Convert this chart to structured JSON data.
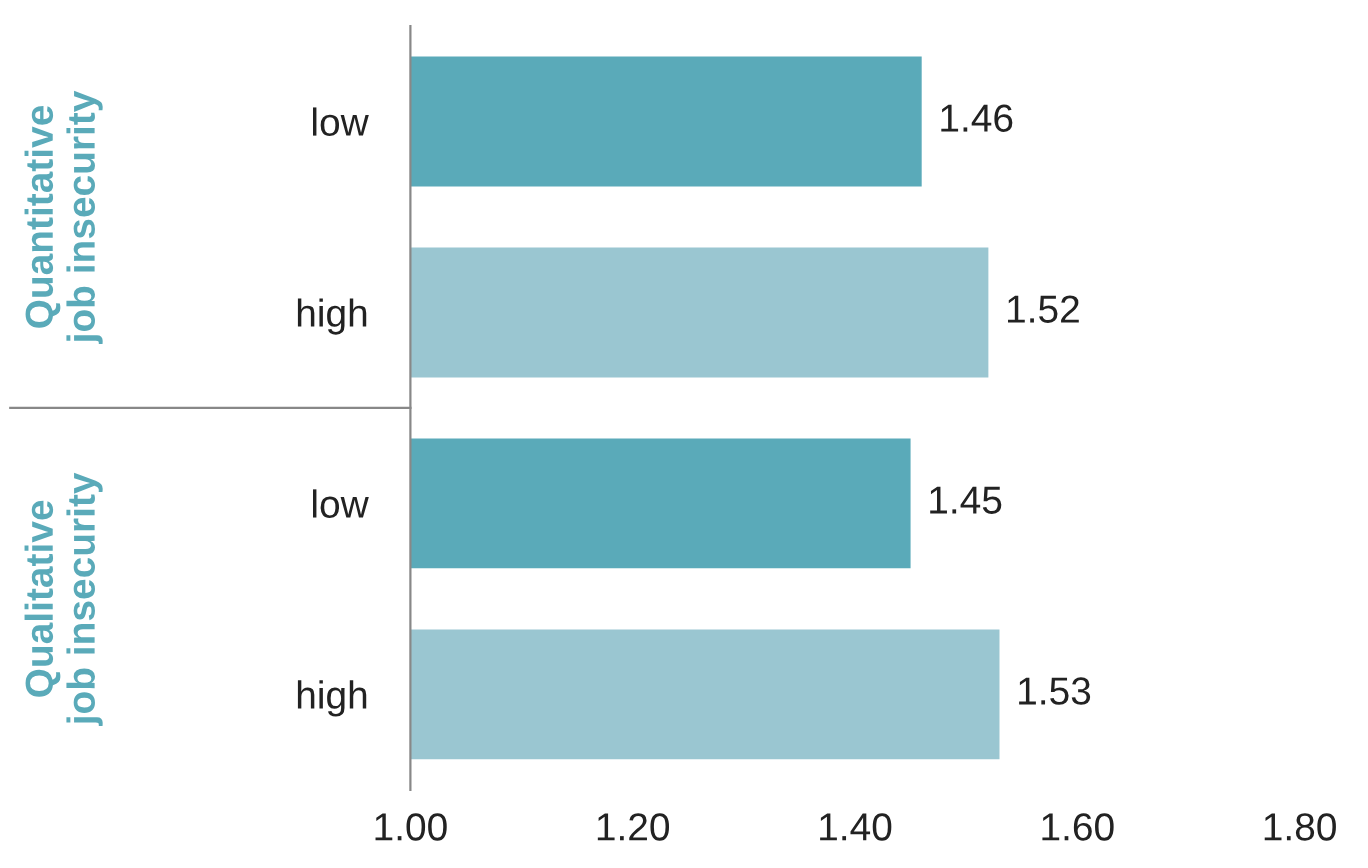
{
  "chart_data": {
    "type": "bar",
    "orientation": "horizontal",
    "categories": [
      "low",
      "high",
      "low",
      "high"
    ],
    "values": [
      1.46,
      1.52,
      1.45,
      1.53
    ],
    "colors": [
      "#5aaab9",
      "#9ac6d1",
      "#5aaab9",
      "#9ac6d1"
    ],
    "xlim": [
      1.0,
      1.8
    ],
    "xticks": [
      {
        "value": 1.0,
        "label": "1.00"
      },
      {
        "value": 1.2,
        "label": "1.20"
      },
      {
        "value": 1.4,
        "label": "1.40"
      },
      {
        "value": 1.6,
        "label": "1.60"
      },
      {
        "value": 1.8,
        "label": "1.80"
      }
    ],
    "data_labels": true,
    "grid": false,
    "legend": false,
    "annotations": [
      "Quantitative\njob insecurity",
      "Qualitative\njob insecurity"
    ]
  }
}
